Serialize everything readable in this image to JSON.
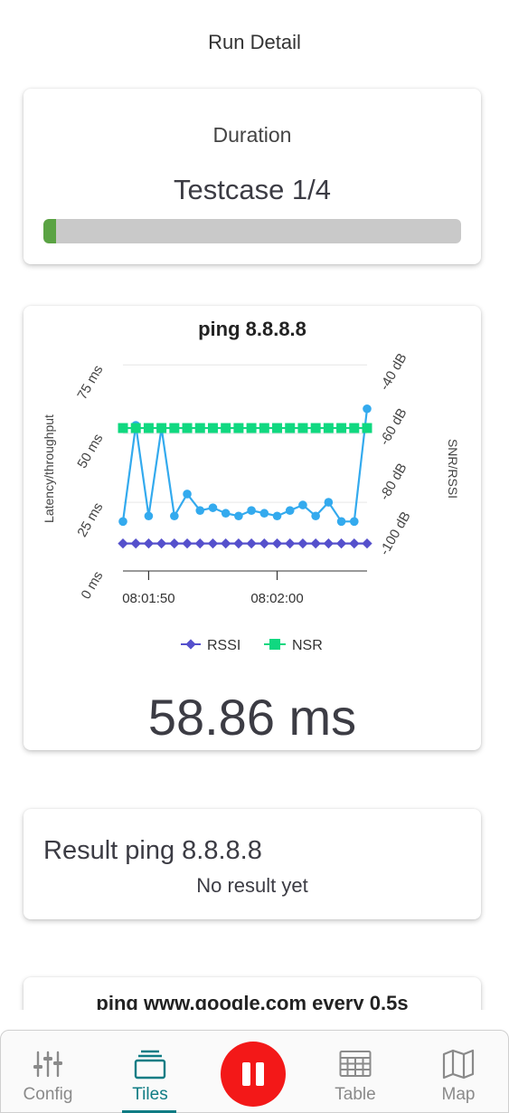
{
  "header": {
    "title": "Run Detail"
  },
  "duration_card": {
    "label": "Duration",
    "testcase": "Testcase 1/4",
    "progress_fraction": 0.03,
    "progress_color": "#5aa343"
  },
  "ping_card": {
    "value": "58.86 ms",
    "chart_data": {
      "type": "line",
      "title": "ping 8.8.8.8",
      "ylabel": "Latency/throughput",
      "y2label": "SNR/RSSI",
      "ylim": [
        0,
        80
      ],
      "y2lim": [
        -110,
        -30
      ],
      "yticks": [
        "0 ms",
        "25 ms",
        "50 ms",
        "75 ms"
      ],
      "y2ticks": [
        "-100 dB",
        "-80 dB",
        "-60 dB",
        "-40 dB"
      ],
      "xticks": [
        "08:01:50",
        "08:02:00"
      ],
      "legend": [
        "RSSI",
        "NSR"
      ],
      "legend_position": "bottom",
      "grid": true,
      "series": [
        {
          "name": "",
          "axis": "left",
          "color": "#33aaee",
          "values": [
            18,
            53,
            20,
            52,
            20,
            28,
            22,
            23,
            21,
            20,
            22,
            21,
            20,
            22,
            24,
            20,
            25,
            18,
            18,
            59
          ]
        },
        {
          "name": "RSSI",
          "axis": "right",
          "color": "#5550cc",
          "values": [
            -100,
            -100,
            -100,
            -100,
            -100,
            -100,
            -100,
            -100,
            -100,
            -100,
            -100,
            -100,
            -100,
            -100,
            -100,
            -100,
            -100,
            -100,
            -100,
            -100
          ]
        },
        {
          "name": "NSR",
          "axis": "right",
          "color": "#10d880",
          "values": [
            -58,
            -58,
            -58,
            -58,
            -58,
            -58,
            -58,
            -58,
            -58,
            -58,
            -58,
            -58,
            -58,
            -58,
            -58,
            -58,
            -58,
            -58,
            -58,
            -58
          ]
        }
      ]
    }
  },
  "result_card": {
    "title": "Result ping 8.8.8.8",
    "status": "No result yet"
  },
  "next_card": {
    "title": "ping www.google.com every 0.5s"
  },
  "bottom_nav": {
    "config": "Config",
    "tiles": "Tiles",
    "table": "Table",
    "map": "Map",
    "active_color": "#0f7c84",
    "pause_color": "#f31818"
  }
}
